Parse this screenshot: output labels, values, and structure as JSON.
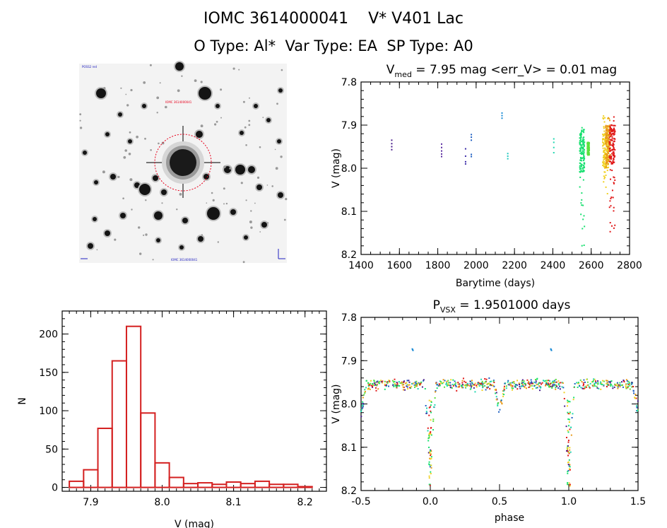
{
  "header": {
    "title": "IOMC 3614000041    V* V401 Lac",
    "subtitle": "O Type: Al*  Var Type: EA  SP Type: A0"
  },
  "sky_image": {
    "label_top_left": "POSS2 red",
    "label_target": "IOMC 3614000041",
    "label_bottom": "IOMC 3614000041",
    "circle_color": "#e8001c"
  },
  "chart_data": [
    {
      "id": "light_curve_time",
      "type": "scatter",
      "title_prefix": "V",
      "title_sub": "med",
      "title_rest": " = 7.95 mag <err_V> = 0.01 mag",
      "xlabel": "Barytime (days)",
      "ylabel": "V (mag)",
      "xlim": [
        1400,
        2800
      ],
      "ylim": [
        8.2,
        7.8
      ],
      "xticks": [
        "1400",
        "1600",
        "1800",
        "2000",
        "2200",
        "2400",
        "2600",
        "2800"
      ],
      "yticks": [
        "7.8",
        "7.9",
        "8.0",
        "8.1",
        "8.2"
      ],
      "groups": [
        {
          "x": 1560,
          "ys": [
            7.935,
            7.943,
            7.95,
            7.957
          ],
          "color": "#4a1f8c"
        },
        {
          "x": 1820,
          "ys": [
            7.944,
            7.952,
            7.96,
            7.967,
            7.973
          ],
          "color": "#5a2ca0"
        },
        {
          "x": 1945,
          "ys": [
            7.955,
            7.972,
            7.985,
            7.99
          ],
          "color": "#3b2aa8"
        },
        {
          "x": 1975,
          "ys": [
            7.922,
            7.928,
            7.935,
            7.968,
            7.973
          ],
          "color": "#1f5fc2"
        },
        {
          "x": 2135,
          "ys": [
            7.872,
            7.878,
            7.884
          ],
          "color": "#1a8bd6"
        },
        {
          "x": 2165,
          "ys": [
            7.966,
            7.972,
            7.978
          ],
          "color": "#20c8c0"
        },
        {
          "x": 2405,
          "ys": [
            7.932,
            7.94,
            7.952,
            7.964
          ],
          "color": "#20d8b0"
        }
      ],
      "dense_groups": [
        {
          "x_from": 2540,
          "x_to": 2565,
          "y_from": 7.89,
          "y_to": 8.19,
          "core_from": 7.91,
          "core_to": 8.01,
          "color": "#18e070"
        },
        {
          "x_from": 2580,
          "x_to": 2590,
          "y_from": 7.94,
          "y_to": 7.97,
          "core_from": 7.94,
          "core_to": 7.97,
          "color": "#5ce03c"
        },
        {
          "x_from": 2660,
          "x_to": 2690,
          "y_from": 7.87,
          "y_to": 8.06,
          "core_from": 7.92,
          "core_to": 8.0,
          "color": "#f0d020"
        },
        {
          "x_from": 2675,
          "x_to": 2700,
          "y_from": 7.88,
          "y_to": 8.0,
          "core_from": 7.9,
          "core_to": 7.99,
          "color": "#e89a18"
        },
        {
          "x_from": 2695,
          "x_to": 2725,
          "y_from": 7.88,
          "y_to": 8.15,
          "core_from": 7.9,
          "core_to": 7.99,
          "color": "#e01818"
        }
      ]
    },
    {
      "id": "histogram",
      "type": "bar",
      "xlabel": "V (mag)",
      "ylabel": "N",
      "xlim": [
        7.86,
        8.23
      ],
      "ylim": [
        -5,
        230
      ],
      "xticks": [
        "7.9",
        "8.0",
        "8.1",
        "8.2"
      ],
      "yticks": [
        "0",
        "50",
        "100",
        "150",
        "200"
      ],
      "bin_width": 0.02,
      "bins_start": [
        7.87,
        7.89,
        7.91,
        7.93,
        7.95,
        7.97,
        7.99,
        8.01,
        8.03,
        8.05,
        8.07,
        8.09,
        8.11,
        8.13,
        8.15,
        8.17,
        8.19
      ],
      "values": [
        8,
        23,
        77,
        165,
        210,
        97,
        32,
        13,
        5,
        6,
        4,
        7,
        5,
        8,
        4,
        4,
        1
      ],
      "color": "#d42020"
    },
    {
      "id": "phased_curve",
      "type": "scatter",
      "title_prefix": "P",
      "title_sub": "VSX",
      "title_rest": " = 1.9501000 days",
      "xlabel": "phase",
      "ylabel": "V (mag)",
      "xlim": [
        -0.5,
        1.5
      ],
      "ylim": [
        8.2,
        7.8
      ],
      "xticks": [
        "-0.5",
        "0.0",
        "0.5",
        "1.0",
        "1.5"
      ],
      "yticks": [
        "7.8",
        "7.9",
        "8.0",
        "8.1",
        "8.2"
      ],
      "period_days": 1.9501,
      "baseline_mag": 7.955,
      "scatter_mag": 0.04,
      "primary_eclipse": {
        "phase": 0.0,
        "depth": 0.24,
        "width": 0.04
      },
      "secondary_eclipse": {
        "phase": 0.5,
        "depth": 0.08,
        "width": 0.04
      },
      "colors": [
        "#18e070",
        "#e01818",
        "#f0d020",
        "#e89a18",
        "#20d8b0",
        "#4a1f8c",
        "#5ce03c",
        "#1f5fc2"
      ],
      "outliers": [
        {
          "phase": -0.13,
          "mag": 7.873,
          "color": "#1a8bd6"
        },
        {
          "phase": 0.87,
          "mag": 7.873,
          "color": "#1a8bd6"
        }
      ]
    }
  ]
}
